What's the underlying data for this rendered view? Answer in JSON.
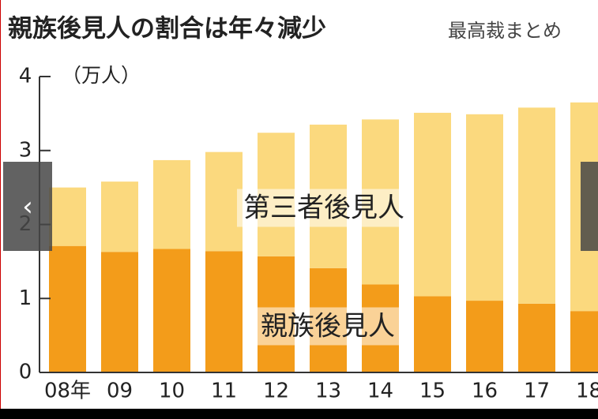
{
  "chart_data": {
    "type": "stacked-bar",
    "title": "親族後見人の割合は年々減少",
    "subtitle": "最高裁まとめ",
    "y_unit": "（万人）",
    "categories": [
      "08年",
      "09",
      "10",
      "11",
      "12",
      "13",
      "14",
      "15",
      "16",
      "17",
      "18"
    ],
    "series": [
      {
        "name": "親族後見人",
        "color": "#f39c1a",
        "values": [
          1.71,
          1.63,
          1.67,
          1.64,
          1.57,
          1.41,
          1.19,
          1.03,
          0.97,
          0.93,
          0.83
        ]
      },
      {
        "name": "第三者後見人",
        "color": "#fbd97e",
        "values": [
          0.79,
          0.95,
          1.2,
          1.34,
          1.67,
          1.94,
          2.23,
          2.48,
          2.52,
          2.65,
          2.82
        ]
      }
    ],
    "ylim": [
      0,
      4
    ],
    "yticks": [
      0,
      1,
      2,
      3,
      4
    ]
  }
}
